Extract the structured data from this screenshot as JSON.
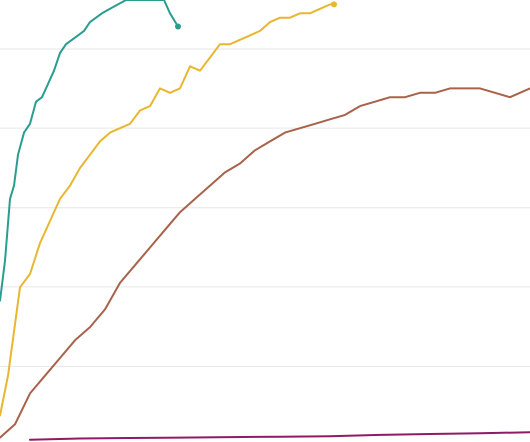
{
  "chart_data": {
    "type": "line",
    "title": "",
    "xlabel": "",
    "ylabel": "",
    "xlim": [
      0,
      530
    ],
    "ylim": [
      0,
      1
    ],
    "grid": true,
    "gridlines_y": [
      0.171,
      0.351,
      0.53,
      0.71,
      0.889
    ],
    "legend": "none",
    "series": [
      {
        "color": "#2a9d8f",
        "end_marker": true,
        "points": [
          [
            0,
            0.32
          ],
          [
            5,
            0.41
          ],
          [
            10,
            0.55
          ],
          [
            14,
            0.58
          ],
          [
            18,
            0.65
          ],
          [
            24,
            0.7
          ],
          [
            30,
            0.72
          ],
          [
            36,
            0.77
          ],
          [
            42,
            0.78
          ],
          [
            48,
            0.81
          ],
          [
            54,
            0.84
          ],
          [
            60,
            0.88
          ],
          [
            66,
            0.9
          ],
          [
            72,
            0.91
          ],
          [
            78,
            0.92
          ],
          [
            84,
            0.93
          ],
          [
            90,
            0.95
          ],
          [
            96,
            0.96
          ],
          [
            102,
            0.97
          ],
          [
            110,
            0.98
          ],
          [
            118,
            0.99
          ],
          [
            126,
            1.0
          ],
          [
            134,
            1.0
          ],
          [
            142,
            1.0
          ],
          [
            150,
            1.0
          ],
          [
            158,
            1.0
          ],
          [
            164,
            1.0
          ],
          [
            170,
            0.97
          ],
          [
            178,
            0.94
          ]
        ]
      },
      {
        "color": "#e9b62f",
        "end_marker": true,
        "points": [
          [
            0,
            0.06
          ],
          [
            8,
            0.15
          ],
          [
            14,
            0.25
          ],
          [
            20,
            0.35
          ],
          [
            30,
            0.38
          ],
          [
            40,
            0.45
          ],
          [
            50,
            0.5
          ],
          [
            60,
            0.55
          ],
          [
            70,
            0.58
          ],
          [
            80,
            0.62
          ],
          [
            90,
            0.65
          ],
          [
            100,
            0.68
          ],
          [
            110,
            0.7
          ],
          [
            120,
            0.71
          ],
          [
            130,
            0.72
          ],
          [
            140,
            0.75
          ],
          [
            150,
            0.76
          ],
          [
            160,
            0.8
          ],
          [
            170,
            0.79
          ],
          [
            180,
            0.8
          ],
          [
            190,
            0.85
          ],
          [
            200,
            0.84
          ],
          [
            210,
            0.87
          ],
          [
            220,
            0.9
          ],
          [
            230,
            0.9
          ],
          [
            240,
            0.91
          ],
          [
            250,
            0.92
          ],
          [
            260,
            0.93
          ],
          [
            270,
            0.95
          ],
          [
            280,
            0.96
          ],
          [
            290,
            0.96
          ],
          [
            300,
            0.97
          ],
          [
            310,
            0.97
          ],
          [
            320,
            0.98
          ],
          [
            330,
            0.99
          ],
          [
            334,
            0.99
          ]
        ]
      },
      {
        "color": "#a9624a",
        "end_marker": false,
        "points": [
          [
            0,
            0.01
          ],
          [
            15,
            0.04
          ],
          [
            30,
            0.11
          ],
          [
            45,
            0.15
          ],
          [
            60,
            0.19
          ],
          [
            75,
            0.23
          ],
          [
            90,
            0.26
          ],
          [
            105,
            0.3
          ],
          [
            120,
            0.36
          ],
          [
            135,
            0.4
          ],
          [
            150,
            0.44
          ],
          [
            165,
            0.48
          ],
          [
            180,
            0.52
          ],
          [
            195,
            0.55
          ],
          [
            210,
            0.58
          ],
          [
            225,
            0.61
          ],
          [
            240,
            0.63
          ],
          [
            255,
            0.66
          ],
          [
            270,
            0.68
          ],
          [
            285,
            0.7
          ],
          [
            300,
            0.71
          ],
          [
            315,
            0.72
          ],
          [
            330,
            0.73
          ],
          [
            345,
            0.74
          ],
          [
            360,
            0.76
          ],
          [
            375,
            0.77
          ],
          [
            390,
            0.78
          ],
          [
            405,
            0.78
          ],
          [
            420,
            0.79
          ],
          [
            435,
            0.79
          ],
          [
            450,
            0.8
          ],
          [
            465,
            0.8
          ],
          [
            480,
            0.8
          ],
          [
            495,
            0.79
          ],
          [
            510,
            0.78
          ],
          [
            530,
            0.8
          ]
        ]
      },
      {
        "color": "#8e1b63",
        "end_marker": false,
        "points": [
          [
            30,
            0.005
          ],
          [
            80,
            0.008
          ],
          [
            130,
            0.009
          ],
          [
            180,
            0.01
          ],
          [
            230,
            0.011
          ],
          [
            280,
            0.012
          ],
          [
            330,
            0.013
          ],
          [
            380,
            0.016
          ],
          [
            430,
            0.018
          ],
          [
            480,
            0.02
          ],
          [
            530,
            0.022
          ]
        ]
      }
    ]
  }
}
